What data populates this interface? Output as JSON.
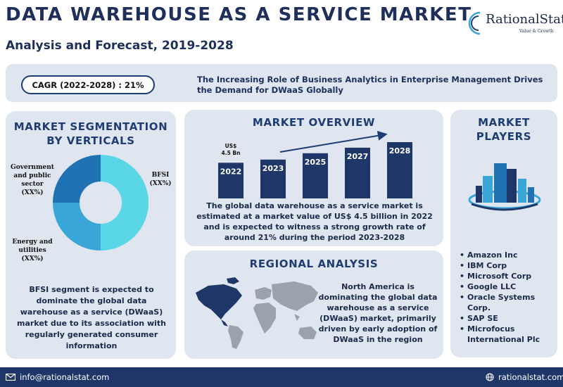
{
  "header": {
    "title": "DATA WAREHOUSE AS A SERVICE MARKET",
    "subtitle": "Analysis and Forecast, 2019-2028"
  },
  "logo": {
    "name": "RationalStat",
    "tagline": "Value & Growth"
  },
  "banner": {
    "cagr": "CAGR (2022-2028) : 21%",
    "text": "The Increasing Role of Business Analytics in Enterprise Management Drives the Demand for DWaaS Globally"
  },
  "segmentation": {
    "title_line1": "MARKET SEGMENTATION",
    "title_line2": "BY VERTICALS",
    "labels": {
      "gov_line1": "Government",
      "gov_line2": "and public",
      "gov_line3": "sector",
      "gov_line4": "(XX%)",
      "bfsi_line1": "BFSI",
      "bfsi_line2": "(XX%)",
      "energy_line1": "Energy and",
      "energy_line2": "utilities",
      "energy_line3": "(XX%)"
    },
    "text": "BFSI segment is expected to dominate the global data warehouse as a service (DWaaS) market due to its association with regularly generated consumer information"
  },
  "overview": {
    "title": "MARKET OVERVIEW",
    "value_label_line1": "US$",
    "value_label_line2": "4.5 Bn",
    "text": "The global data warehouse as a service market is estimated at a market value of US$ 4.5 billion in 2022 and is expected to witness a strong growth rate of around 21% during the period 2023-2028"
  },
  "chart_data": [
    {
      "type": "pie",
      "categories": [
        "BFSI",
        "Energy and utilities",
        "Government and public sector"
      ],
      "values": [
        50,
        25,
        25
      ],
      "colors": [
        "#5ad7e6",
        "#3aa6d8",
        "#1f73b4"
      ],
      "title": "MARKET SEGMENTATION BY VERTICALS"
    },
    {
      "type": "bar",
      "categories": [
        "2022",
        "2023",
        "2025",
        "2027",
        "2028"
      ],
      "values": [
        4.5,
        4.9,
        5.7,
        6.4,
        7.1
      ],
      "color": "#1f3768",
      "title": "MARKET OVERVIEW"
    }
  ],
  "regional": {
    "title": "REGIONAL ANALYSIS",
    "text": "North America is dominating the global data warehouse as a service (DWaaS) market, primarily driven by early adoption of DWaaS in the region"
  },
  "players": {
    "title_line1": "MARKET",
    "title_line2": "PLAYERS",
    "bullet": "•",
    "list": [
      "Amazon Inc",
      "IBM Corp",
      "Microsoft Corp",
      "Google LLC",
      "Oracle Systems Corp.",
      "SAP SE",
      "Microfocus International Plc"
    ]
  },
  "footer": {
    "email": "info@rationalstat.com",
    "website": "rationalstat.com"
  },
  "colors": {
    "navy": "#1f2f5c",
    "footer": "#1f3768",
    "panel": "#dfe6ef",
    "accent": "#1f3c73"
  }
}
